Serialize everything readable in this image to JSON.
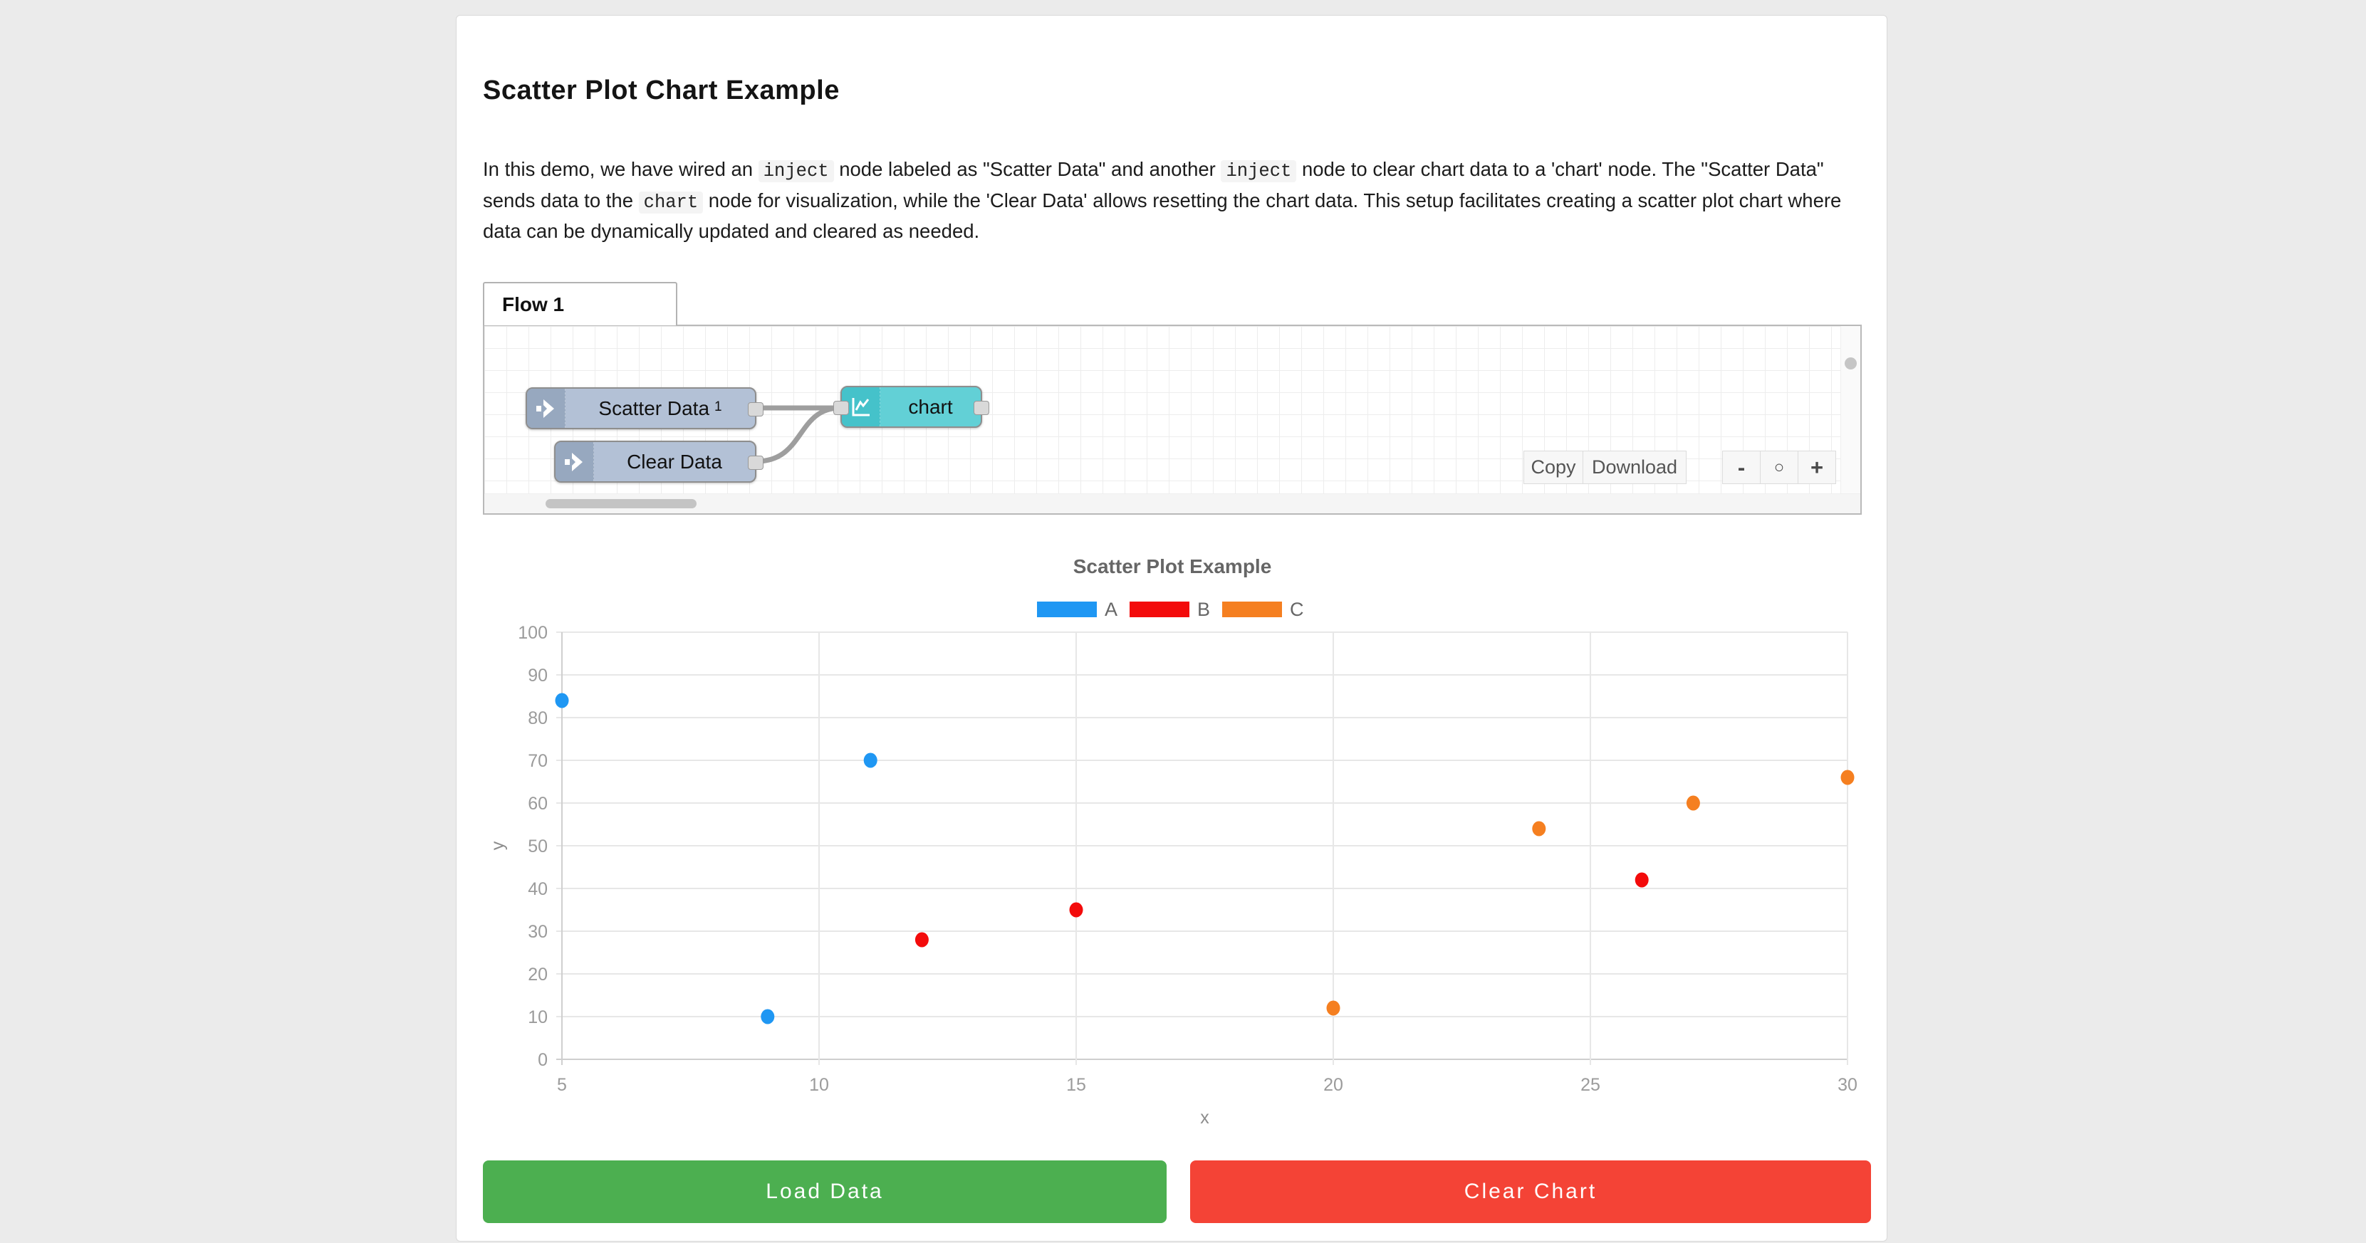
{
  "page": {
    "title": "Scatter Plot Chart Example"
  },
  "intro": {
    "segments": [
      {
        "t": "text",
        "v": "In this demo, we have wired an "
      },
      {
        "t": "code",
        "v": "inject"
      },
      {
        "t": "text",
        "v": " node labeled as \"Scatter Data\" and another "
      },
      {
        "t": "code",
        "v": "inject"
      },
      {
        "t": "text",
        "v": " node to clear chart data to a 'chart' node. The \"Scatter Data\" sends data to the "
      },
      {
        "t": "code",
        "v": "chart"
      },
      {
        "t": "text",
        "v": " node for visualization, while the 'Clear Data' allows resetting the chart data. This setup facilitates creating a scatter plot chart where data can be dynamically updated and cleared as needed."
      }
    ]
  },
  "flow": {
    "tab_label": "Flow 1",
    "nodes": [
      {
        "label": "Scatter Data",
        "badge": "1",
        "type": "inject"
      },
      {
        "label": "Clear Data",
        "type": "inject"
      },
      {
        "label": "chart",
        "type": "chart"
      }
    ],
    "toolbar": {
      "copy_label": "Copy",
      "download_label": "Download",
      "zoom_out_label": "-",
      "zoom_reset_label": "○",
      "zoom_in_label": "+"
    }
  },
  "chart_data": {
    "type": "scatter",
    "title": "Scatter Plot Example",
    "xlabel": "x",
    "ylabel": "y",
    "xlim": [
      5,
      30
    ],
    "ylim": [
      0,
      100
    ],
    "xticks": [
      5,
      10,
      15,
      20,
      25,
      30
    ],
    "yticks": [
      0,
      10,
      20,
      30,
      40,
      50,
      60,
      70,
      80,
      90,
      100
    ],
    "grid": true,
    "legend_position": "top",
    "series": [
      {
        "name": "A",
        "color": "#1f97f3",
        "points": [
          [
            5,
            84
          ],
          [
            9,
            10
          ],
          [
            11,
            70
          ]
        ]
      },
      {
        "name": "B",
        "color": "#f30b0b",
        "points": [
          [
            12,
            28
          ],
          [
            15,
            35
          ],
          [
            26,
            42
          ]
        ]
      },
      {
        "name": "C",
        "color": "#f57f20",
        "points": [
          [
            20,
            12
          ],
          [
            24,
            54
          ],
          [
            27,
            60
          ],
          [
            30,
            66
          ]
        ]
      }
    ]
  },
  "actions": {
    "load_label": "Load Data",
    "clear_label": "Clear Chart",
    "load_color": "#4caf50",
    "clear_color": "#f44336"
  }
}
